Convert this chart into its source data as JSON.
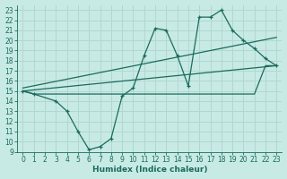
{
  "title": "",
  "xlabel": "Humidex (Indice chaleur)",
  "ylabel": "",
  "xlim": [
    -0.5,
    23.5
  ],
  "ylim": [
    9,
    23.5
  ],
  "xticks": [
    0,
    1,
    2,
    3,
    4,
    5,
    6,
    7,
    8,
    9,
    10,
    11,
    12,
    13,
    14,
    15,
    16,
    17,
    18,
    19,
    20,
    21,
    22,
    23
  ],
  "yticks": [
    9,
    10,
    11,
    12,
    13,
    14,
    15,
    16,
    17,
    18,
    19,
    20,
    21,
    22,
    23
  ],
  "background_color": "#c8eae4",
  "grid_color": "#b0d8d0",
  "line_color": "#1a6b5e",
  "line1_x": [
    0,
    1,
    2,
    3,
    4,
    5,
    6,
    7,
    8,
    9,
    10,
    11,
    12,
    13,
    14,
    15,
    16,
    17,
    18,
    19,
    20,
    21,
    22,
    23
  ],
  "line1_y": [
    15,
    14.7,
    14.7,
    14.7,
    14.7,
    14.7,
    14.7,
    14.7,
    14.7,
    14.7,
    14.7,
    14.7,
    14.7,
    14.7,
    14.7,
    14.7,
    14.7,
    14.7,
    14.7,
    14.7,
    14.7,
    14.7,
    17.5,
    17.5
  ],
  "line2_x": [
    0,
    23
  ],
  "line2_y": [
    15,
    17.5
  ],
  "line3_x": [
    0,
    23
  ],
  "line3_y": [
    15.3,
    20.3
  ],
  "wavy_x": [
    0,
    1,
    3,
    4,
    5,
    6,
    7,
    8,
    9,
    10,
    11,
    12,
    13,
    14,
    15,
    16,
    17,
    18,
    19,
    20,
    21,
    22,
    23
  ],
  "wavy_y": [
    15,
    14.7,
    14.0,
    13.0,
    11.0,
    9.2,
    9.5,
    10.3,
    14.5,
    15.3,
    18.5,
    21.2,
    21.0,
    18.5,
    15.5,
    22.3,
    22.3,
    23.0,
    21.0,
    20.0,
    19.2,
    18.2,
    17.5
  ],
  "linewidth": 0.9,
  "font_color": "#1a6b5e",
  "tick_fontsize": 5.5,
  "label_fontsize": 6.5
}
